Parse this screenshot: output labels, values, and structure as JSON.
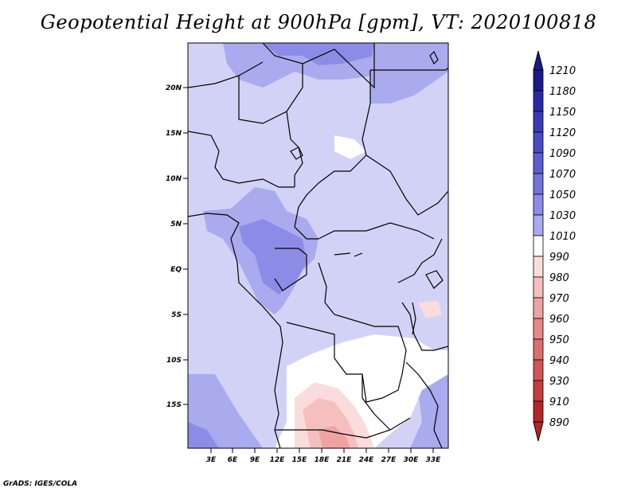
{
  "title": "Geopotential Height at 900hPa [gpm], VT: 2020100818",
  "credit": "GrADS: IGES/COLA",
  "map": {
    "lat_ticks": [
      "20N",
      "15N",
      "10N",
      "5N",
      "EQ",
      "5S",
      "10S",
      "15S"
    ],
    "lon_ticks": [
      "3E",
      "6E",
      "9E",
      "12E",
      "15E",
      "18E",
      "21E",
      "24E",
      "27E",
      "30E",
      "33E"
    ]
  },
  "colorbar": {
    "levels": [
      "1210",
      "1180",
      "1150",
      "1120",
      "1090",
      "1070",
      "1050",
      "1030",
      "1010",
      "990",
      "980",
      "970",
      "960",
      "950",
      "940",
      "930",
      "910",
      "890"
    ],
    "colors": [
      "#1a1a8c",
      "#2a2aa8",
      "#3a3ab8",
      "#4a4ac6",
      "#5d5dd2",
      "#7373dc",
      "#8c8ce6",
      "#aaaaee",
      "#d2d2f6",
      "#ffffff",
      "#fbdcdc",
      "#f5bfbf",
      "#eea3a3",
      "#e68888",
      "#dd6e6e",
      "#d25454",
      "#c43c3c",
      "#b22828"
    ]
  }
}
